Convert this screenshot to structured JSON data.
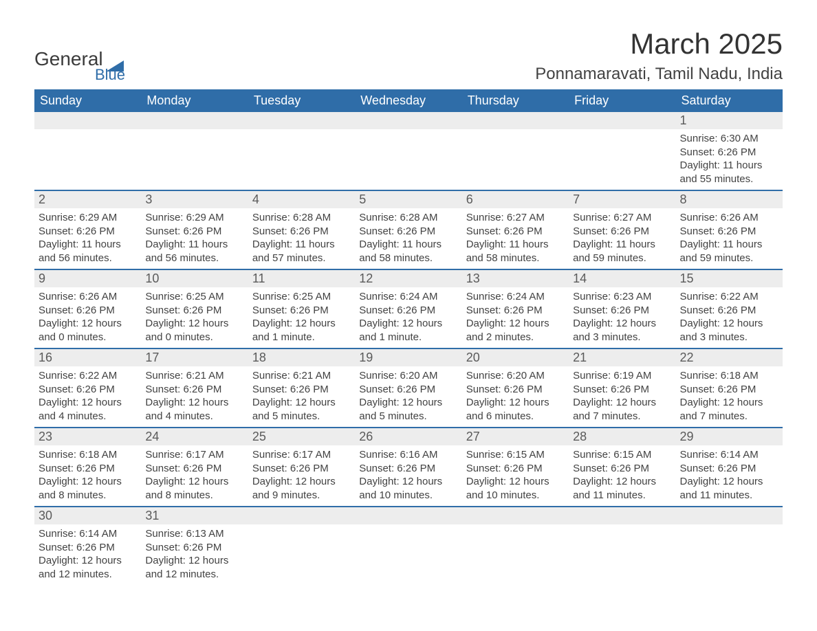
{
  "brand": {
    "name_main": "General",
    "name_sub": "Blue",
    "icon_color": "#2f6da8",
    "text_color_main": "#3b3b3b",
    "text_color_sub": "#2f6da8"
  },
  "title": "March 2025",
  "location": "Ponnamaravati, Tamil Nadu, India",
  "colors": {
    "header_bg": "#2f6da8",
    "header_text": "#ffffff",
    "week_divider": "#2f6da8",
    "daynum_bg": "#ededed",
    "body_text": "#424242",
    "background": "#ffffff"
  },
  "fonts": {
    "title_size": 42,
    "location_size": 24,
    "header_size": 18,
    "daynum_size": 18,
    "body_size": 15,
    "family": "Arial"
  },
  "day_headers": [
    "Sunday",
    "Monday",
    "Tuesday",
    "Wednesday",
    "Thursday",
    "Friday",
    "Saturday"
  ],
  "weeks": [
    [
      null,
      null,
      null,
      null,
      null,
      null,
      {
        "num": "1",
        "sunrise": "Sunrise: 6:30 AM",
        "sunset": "Sunset: 6:26 PM",
        "daylight": "Daylight: 11 hours and 55 minutes."
      }
    ],
    [
      {
        "num": "2",
        "sunrise": "Sunrise: 6:29 AM",
        "sunset": "Sunset: 6:26 PM",
        "daylight": "Daylight: 11 hours and 56 minutes."
      },
      {
        "num": "3",
        "sunrise": "Sunrise: 6:29 AM",
        "sunset": "Sunset: 6:26 PM",
        "daylight": "Daylight: 11 hours and 56 minutes."
      },
      {
        "num": "4",
        "sunrise": "Sunrise: 6:28 AM",
        "sunset": "Sunset: 6:26 PM",
        "daylight": "Daylight: 11 hours and 57 minutes."
      },
      {
        "num": "5",
        "sunrise": "Sunrise: 6:28 AM",
        "sunset": "Sunset: 6:26 PM",
        "daylight": "Daylight: 11 hours and 58 minutes."
      },
      {
        "num": "6",
        "sunrise": "Sunrise: 6:27 AM",
        "sunset": "Sunset: 6:26 PM",
        "daylight": "Daylight: 11 hours and 58 minutes."
      },
      {
        "num": "7",
        "sunrise": "Sunrise: 6:27 AM",
        "sunset": "Sunset: 6:26 PM",
        "daylight": "Daylight: 11 hours and 59 minutes."
      },
      {
        "num": "8",
        "sunrise": "Sunrise: 6:26 AM",
        "sunset": "Sunset: 6:26 PM",
        "daylight": "Daylight: 11 hours and 59 minutes."
      }
    ],
    [
      {
        "num": "9",
        "sunrise": "Sunrise: 6:26 AM",
        "sunset": "Sunset: 6:26 PM",
        "daylight": "Daylight: 12 hours and 0 minutes."
      },
      {
        "num": "10",
        "sunrise": "Sunrise: 6:25 AM",
        "sunset": "Sunset: 6:26 PM",
        "daylight": "Daylight: 12 hours and 0 minutes."
      },
      {
        "num": "11",
        "sunrise": "Sunrise: 6:25 AM",
        "sunset": "Sunset: 6:26 PM",
        "daylight": "Daylight: 12 hours and 1 minute."
      },
      {
        "num": "12",
        "sunrise": "Sunrise: 6:24 AM",
        "sunset": "Sunset: 6:26 PM",
        "daylight": "Daylight: 12 hours and 1 minute."
      },
      {
        "num": "13",
        "sunrise": "Sunrise: 6:24 AM",
        "sunset": "Sunset: 6:26 PM",
        "daylight": "Daylight: 12 hours and 2 minutes."
      },
      {
        "num": "14",
        "sunrise": "Sunrise: 6:23 AM",
        "sunset": "Sunset: 6:26 PM",
        "daylight": "Daylight: 12 hours and 3 minutes."
      },
      {
        "num": "15",
        "sunrise": "Sunrise: 6:22 AM",
        "sunset": "Sunset: 6:26 PM",
        "daylight": "Daylight: 12 hours and 3 minutes."
      }
    ],
    [
      {
        "num": "16",
        "sunrise": "Sunrise: 6:22 AM",
        "sunset": "Sunset: 6:26 PM",
        "daylight": "Daylight: 12 hours and 4 minutes."
      },
      {
        "num": "17",
        "sunrise": "Sunrise: 6:21 AM",
        "sunset": "Sunset: 6:26 PM",
        "daylight": "Daylight: 12 hours and 4 minutes."
      },
      {
        "num": "18",
        "sunrise": "Sunrise: 6:21 AM",
        "sunset": "Sunset: 6:26 PM",
        "daylight": "Daylight: 12 hours and 5 minutes."
      },
      {
        "num": "19",
        "sunrise": "Sunrise: 6:20 AM",
        "sunset": "Sunset: 6:26 PM",
        "daylight": "Daylight: 12 hours and 5 minutes."
      },
      {
        "num": "20",
        "sunrise": "Sunrise: 6:20 AM",
        "sunset": "Sunset: 6:26 PM",
        "daylight": "Daylight: 12 hours and 6 minutes."
      },
      {
        "num": "21",
        "sunrise": "Sunrise: 6:19 AM",
        "sunset": "Sunset: 6:26 PM",
        "daylight": "Daylight: 12 hours and 7 minutes."
      },
      {
        "num": "22",
        "sunrise": "Sunrise: 6:18 AM",
        "sunset": "Sunset: 6:26 PM",
        "daylight": "Daylight: 12 hours and 7 minutes."
      }
    ],
    [
      {
        "num": "23",
        "sunrise": "Sunrise: 6:18 AM",
        "sunset": "Sunset: 6:26 PM",
        "daylight": "Daylight: 12 hours and 8 minutes."
      },
      {
        "num": "24",
        "sunrise": "Sunrise: 6:17 AM",
        "sunset": "Sunset: 6:26 PM",
        "daylight": "Daylight: 12 hours and 8 minutes."
      },
      {
        "num": "25",
        "sunrise": "Sunrise: 6:17 AM",
        "sunset": "Sunset: 6:26 PM",
        "daylight": "Daylight: 12 hours and 9 minutes."
      },
      {
        "num": "26",
        "sunrise": "Sunrise: 6:16 AM",
        "sunset": "Sunset: 6:26 PM",
        "daylight": "Daylight: 12 hours and 10 minutes."
      },
      {
        "num": "27",
        "sunrise": "Sunrise: 6:15 AM",
        "sunset": "Sunset: 6:26 PM",
        "daylight": "Daylight: 12 hours and 10 minutes."
      },
      {
        "num": "28",
        "sunrise": "Sunrise: 6:15 AM",
        "sunset": "Sunset: 6:26 PM",
        "daylight": "Daylight: 12 hours and 11 minutes."
      },
      {
        "num": "29",
        "sunrise": "Sunrise: 6:14 AM",
        "sunset": "Sunset: 6:26 PM",
        "daylight": "Daylight: 12 hours and 11 minutes."
      }
    ],
    [
      {
        "num": "30",
        "sunrise": "Sunrise: 6:14 AM",
        "sunset": "Sunset: 6:26 PM",
        "daylight": "Daylight: 12 hours and 12 minutes."
      },
      {
        "num": "31",
        "sunrise": "Sunrise: 6:13 AM",
        "sunset": "Sunset: 6:26 PM",
        "daylight": "Daylight: 12 hours and 12 minutes."
      },
      null,
      null,
      null,
      null,
      null
    ]
  ]
}
